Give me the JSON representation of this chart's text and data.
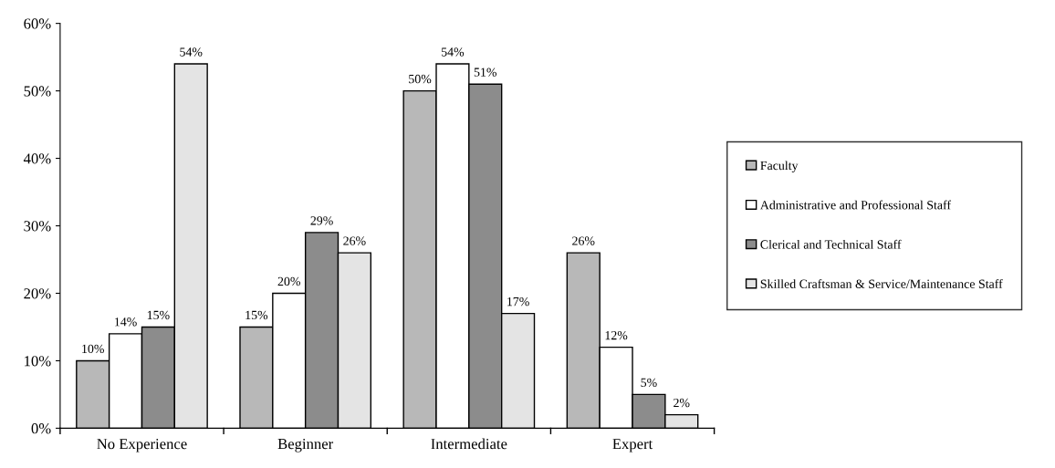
{
  "chart_data": {
    "type": "bar",
    "categories": [
      "No Experience",
      "Beginner",
      "Intermediate",
      "Expert"
    ],
    "series": [
      {
        "name": "Faculty",
        "color": "#b8b8b8",
        "values": [
          10,
          15,
          50,
          26
        ],
        "value_labels": [
          "10%",
          "15%",
          "50%",
          "26%"
        ]
      },
      {
        "name": "Administrative and Professional Staff",
        "color": "#ffffff",
        "values": [
          14,
          20,
          54,
          12
        ],
        "value_labels": [
          "14%",
          "20%",
          "54%",
          "12%"
        ]
      },
      {
        "name": "Clerical and Technical Staff",
        "color": "#8c8c8c",
        "values": [
          15,
          29,
          51,
          5
        ],
        "value_labels": [
          "15%",
          "29%",
          "51%",
          "5%"
        ]
      },
      {
        "name": "Skilled Craftsman & Service/Maintenance Staff",
        "color": "#e4e4e4",
        "values": [
          54,
          26,
          17,
          2
        ],
        "value_labels": [
          "54%",
          "26%",
          "17%",
          "2%"
        ]
      }
    ],
    "ylim": [
      0,
      60
    ],
    "yticks": [
      {
        "value": 0,
        "label": "0%"
      },
      {
        "value": 10,
        "label": "10%"
      },
      {
        "value": 20,
        "label": "20%"
      },
      {
        "value": 30,
        "label": "30%"
      },
      {
        "value": 40,
        "label": "40%"
      },
      {
        "value": 50,
        "label": "50%"
      },
      {
        "value": 60,
        "label": "60%"
      }
    ],
    "grid": false,
    "legend": "right"
  }
}
